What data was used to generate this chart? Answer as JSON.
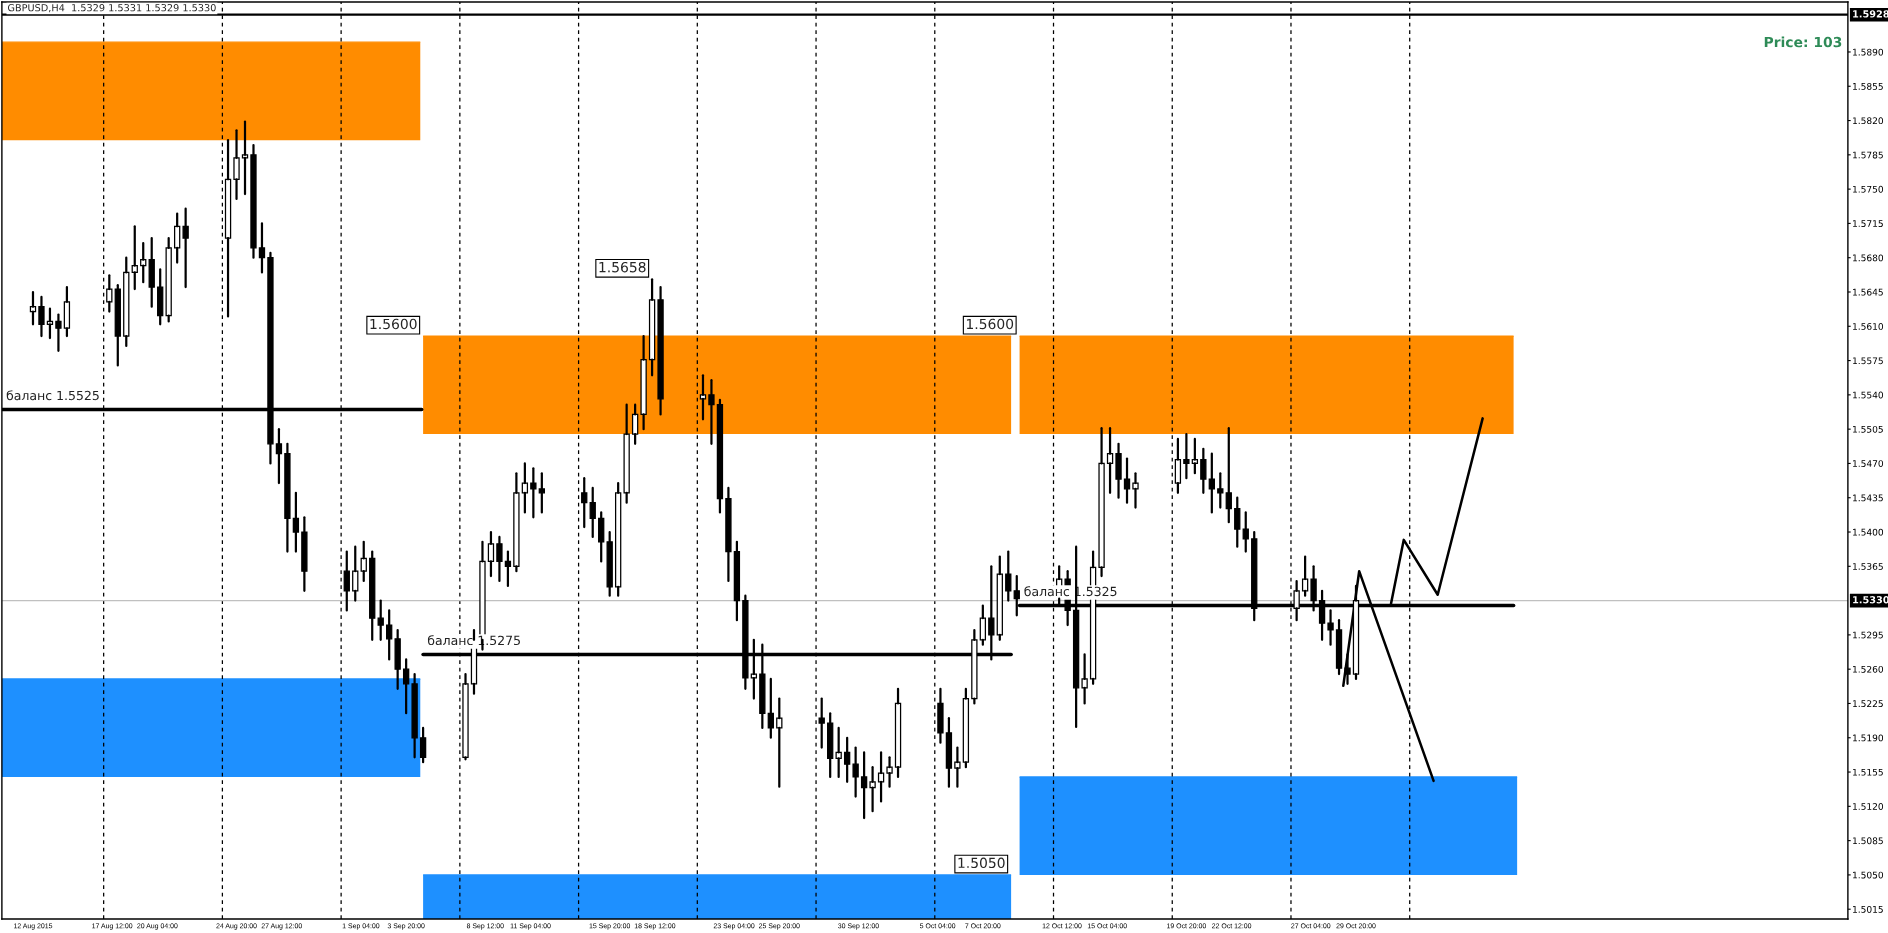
{
  "chart_data": {
    "type": "candlestick",
    "title": "GBPUSD,H4  1.5329 1.5331 1.5329 1.5330",
    "x": [
      "2015-08-12T20:00",
      "2015-08-13T08:00",
      "2015-08-13T20:00",
      "2015-08-14T08:00",
      "2015-08-14T20:00",
      "2015-08-17T08:00",
      "2015-08-17T20:00",
      "2015-08-18T08:00",
      "2015-08-18T20:00",
      "2015-08-19T08:00",
      "2015-08-19T20:00",
      "2015-08-20T08:00",
      "2015-08-20T20:00",
      "2015-08-21T08:00",
      "2015-08-21T20:00",
      "2015-08-24T08:00",
      "2015-08-24T20:00",
      "2015-08-25T08:00",
      "2015-08-25T20:00",
      "2015-08-26T08:00",
      "2015-08-26T20:00",
      "2015-08-27T08:00",
      "2015-08-27T20:00",
      "2015-08-28T08:00",
      "2015-08-28T20:00",
      "2015-08-31T08:00",
      "2015-08-31T20:00",
      "2015-09-01T08:00",
      "2015-09-01T20:00",
      "2015-09-02T08:00",
      "2015-09-02T20:00",
      "2015-09-03T08:00",
      "2015-09-03T20:00",
      "2015-09-04T08:00",
      "2015-09-04T20:00",
      "2015-09-07T08:00",
      "2015-09-07T20:00",
      "2015-09-08T08:00",
      "2015-09-08T20:00",
      "2015-09-09T08:00",
      "2015-09-09T20:00",
      "2015-09-10T08:00",
      "2015-09-10T20:00",
      "2015-09-11T08:00",
      "2015-09-11T20:00",
      "2015-09-14T08:00",
      "2015-09-14T20:00",
      "2015-09-15T08:00",
      "2015-09-15T20:00",
      "2015-09-16T08:00",
      "2015-09-16T20:00",
      "2015-09-17T08:00",
      "2015-09-17T20:00",
      "2015-09-18T08:00",
      "2015-09-18T20:00",
      "2015-09-21T08:00",
      "2015-09-21T20:00",
      "2015-09-22T08:00",
      "2015-09-22T20:00",
      "2015-09-23T08:00",
      "2015-09-23T20:00",
      "2015-09-24T08:00",
      "2015-09-24T20:00",
      "2015-09-25T08:00",
      "2015-09-25T20:00",
      "2015-09-28T08:00",
      "2015-09-28T20:00",
      "2015-09-29T08:00",
      "2015-09-29T20:00",
      "2015-09-30T08:00",
      "2015-09-30T20:00",
      "2015-10-01T08:00",
      "2015-10-01T20:00",
      "2015-10-02T08:00",
      "2015-10-02T20:00",
      "2015-10-05T08:00",
      "2015-10-05T20:00",
      "2015-10-06T08:00",
      "2015-10-06T20:00",
      "2015-10-07T08:00",
      "2015-10-07T20:00",
      "2015-10-08T08:00",
      "2015-10-08T20:00",
      "2015-10-09T08:00",
      "2015-10-09T20:00",
      "2015-10-12T08:00",
      "2015-10-12T20:00",
      "2015-10-13T08:00",
      "2015-10-13T20:00",
      "2015-10-14T08:00",
      "2015-10-14T20:00",
      "2015-10-15T08:00",
      "2015-10-15T20:00",
      "2015-10-16T08:00",
      "2015-10-16T20:00",
      "2015-10-19T08:00",
      "2015-10-19T20:00",
      "2015-10-20T08:00",
      "2015-10-20T20:00",
      "2015-10-21T08:00",
      "2015-10-21T20:00",
      "2015-10-22T08:00",
      "2015-10-22T20:00",
      "2015-10-23T08:00",
      "2015-10-23T20:00",
      "2015-10-26T08:00",
      "2015-10-26T20:00",
      "2015-10-27T08:00",
      "2015-10-27T20:00",
      "2015-10-28T08:00",
      "2015-10-28T20:00",
      "2015-10-29T08:00",
      "2015-10-29T20:00"
    ],
    "ohlc": [
      [
        1.5625,
        1.5645,
        1.5612,
        1.563
      ],
      [
        1.563,
        1.564,
        1.56,
        1.5612
      ],
      [
        1.5612,
        1.5628,
        1.5598,
        1.5615
      ],
      [
        1.5615,
        1.5622,
        1.5585,
        1.5608
      ],
      [
        1.5608,
        1.565,
        1.56,
        1.5635
      ],
      [
        1.5635,
        1.5662,
        1.5625,
        1.5648
      ],
      [
        1.5648,
        1.5652,
        1.557,
        1.56
      ],
      [
        1.56,
        1.568,
        1.559,
        1.5665
      ],
      [
        1.5665,
        1.5712,
        1.5648,
        1.5672
      ],
      [
        1.5672,
        1.5695,
        1.5655,
        1.5678
      ],
      [
        1.5678,
        1.57,
        1.563,
        1.565
      ],
      [
        1.565,
        1.5668,
        1.5612,
        1.5621
      ],
      [
        1.5621,
        1.57,
        1.5615,
        1.569
      ],
      [
        1.569,
        1.5725,
        1.5675,
        1.5712
      ],
      [
        1.5712,
        1.573,
        1.565,
        1.57
      ],
      [
        1.57,
        1.58,
        1.562,
        1.576
      ],
      [
        1.576,
        1.581,
        1.574,
        1.5782
      ],
      [
        1.5782,
        1.5819,
        1.5745,
        1.5785
      ],
      [
        1.5785,
        1.5795,
        1.568,
        1.569
      ],
      [
        1.569,
        1.5715,
        1.5665,
        1.568
      ],
      [
        1.568,
        1.5685,
        1.547,
        1.549
      ],
      [
        1.549,
        1.5505,
        1.545,
        1.548
      ],
      [
        1.548,
        1.549,
        1.538,
        1.5414
      ],
      [
        1.5414,
        1.544,
        1.538,
        1.54
      ],
      [
        1.54,
        1.5415,
        1.534,
        1.536
      ],
      [
        1.536,
        1.538,
        1.532,
        1.534
      ],
      [
        1.534,
        1.5385,
        1.533,
        1.536
      ],
      [
        1.536,
        1.539,
        1.535,
        1.5373
      ],
      [
        1.5373,
        1.538,
        1.529,
        1.5312
      ],
      [
        1.5312,
        1.533,
        1.529,
        1.5305
      ],
      [
        1.5305,
        1.532,
        1.527,
        1.5291
      ],
      [
        1.5291,
        1.53,
        1.524,
        1.526
      ],
      [
        1.526,
        1.527,
        1.5215,
        1.5245
      ],
      [
        1.5245,
        1.5255,
        1.517,
        1.519
      ],
      [
        1.519,
        1.52,
        1.5165,
        1.517
      ],
      [
        1.517,
        1.5255,
        1.5168,
        1.5245
      ],
      [
        1.5245,
        1.53,
        1.5235,
        1.529
      ],
      [
        1.529,
        1.539,
        1.528,
        1.537
      ],
      [
        1.537,
        1.54,
        1.5355,
        1.5388
      ],
      [
        1.5388,
        1.5395,
        1.535,
        1.537
      ],
      [
        1.537,
        1.538,
        1.5345,
        1.5365
      ],
      [
        1.5365,
        1.546,
        1.536,
        1.544
      ],
      [
        1.544,
        1.547,
        1.542,
        1.545
      ],
      [
        1.545,
        1.5465,
        1.5415,
        1.5444
      ],
      [
        1.5444,
        1.546,
        1.542,
        1.544
      ],
      [
        1.544,
        1.5455,
        1.5405,
        1.543
      ],
      [
        1.543,
        1.5445,
        1.5395,
        1.5414
      ],
      [
        1.5414,
        1.542,
        1.537,
        1.539
      ],
      [
        1.539,
        1.54,
        1.5335,
        1.5344
      ],
      [
        1.5344,
        1.545,
        1.5335,
        1.544
      ],
      [
        1.544,
        1.553,
        1.543,
        1.55
      ],
      [
        1.55,
        1.553,
        1.549,
        1.552
      ],
      [
        1.552,
        1.56,
        1.5505,
        1.5576
      ],
      [
        1.5576,
        1.5658,
        1.556,
        1.5637
      ],
      [
        1.5637,
        1.565,
        1.552,
        1.5536
      ],
      [
        1.5536,
        1.556,
        1.5515,
        1.554
      ],
      [
        1.554,
        1.5555,
        1.549,
        1.553
      ],
      [
        1.553,
        1.5535,
        1.542,
        1.5434
      ],
      [
        1.5434,
        1.5445,
        1.535,
        1.538
      ],
      [
        1.538,
        1.539,
        1.531,
        1.533
      ],
      [
        1.533,
        1.5335,
        1.524,
        1.5251
      ],
      [
        1.5251,
        1.529,
        1.523,
        1.5255
      ],
      [
        1.5255,
        1.5285,
        1.52,
        1.5215
      ],
      [
        1.5215,
        1.525,
        1.519,
        1.52
      ],
      [
        1.52,
        1.523,
        1.514,
        1.521
      ],
      [
        1.521,
        1.523,
        1.518,
        1.5205
      ],
      [
        1.5205,
        1.5215,
        1.515,
        1.5169
      ],
      [
        1.5169,
        1.52,
        1.515,
        1.5175
      ],
      [
        1.5175,
        1.519,
        1.5145,
        1.5163
      ],
      [
        1.5163,
        1.518,
        1.513,
        1.515
      ],
      [
        1.515,
        1.5175,
        1.5108,
        1.5139
      ],
      [
        1.5139,
        1.516,
        1.5115,
        1.5145
      ],
      [
        1.5145,
        1.5175,
        1.5125,
        1.5154
      ],
      [
        1.5154,
        1.517,
        1.514,
        1.516
      ],
      [
        1.516,
        1.524,
        1.515,
        1.5225
      ],
      [
        1.5225,
        1.524,
        1.5185,
        1.5195
      ],
      [
        1.5195,
        1.521,
        1.514,
        1.5159
      ],
      [
        1.5159,
        1.518,
        1.514,
        1.5165
      ],
      [
        1.5165,
        1.524,
        1.516,
        1.523
      ],
      [
        1.523,
        1.53,
        1.5225,
        1.529
      ],
      [
        1.529,
        1.5325,
        1.5285,
        1.5312
      ],
      [
        1.5312,
        1.5365,
        1.527,
        1.5295
      ],
      [
        1.5295,
        1.5375,
        1.529,
        1.5357
      ],
      [
        1.5357,
        1.538,
        1.533,
        1.534
      ],
      [
        1.534,
        1.5355,
        1.5315,
        1.5332
      ],
      [
        1.5332,
        1.5365,
        1.5325,
        1.5352
      ],
      [
        1.5352,
        1.536,
        1.5305,
        1.532
      ],
      [
        1.532,
        1.5385,
        1.5201,
        1.5241
      ],
      [
        1.5241,
        1.5275,
        1.5225,
        1.525
      ],
      [
        1.525,
        1.538,
        1.5245,
        1.5364
      ],
      [
        1.5364,
        1.5506,
        1.5355,
        1.547
      ],
      [
        1.547,
        1.5506,
        1.544,
        1.548
      ],
      [
        1.548,
        1.549,
        1.5435,
        1.5454
      ],
      [
        1.5454,
        1.5475,
        1.543,
        1.5444
      ],
      [
        1.5444,
        1.546,
        1.5425,
        1.545
      ],
      [
        1.545,
        1.5495,
        1.544,
        1.5474
      ],
      [
        1.5474,
        1.55,
        1.5455,
        1.547
      ],
      [
        1.547,
        1.5495,
        1.546,
        1.5474
      ],
      [
        1.5474,
        1.5485,
        1.544,
        1.5454
      ],
      [
        1.5454,
        1.548,
        1.542,
        1.5444
      ],
      [
        1.5444,
        1.546,
        1.5425,
        1.544
      ],
      [
        1.544,
        1.5506,
        1.541,
        1.5424
      ],
      [
        1.5424,
        1.5435,
        1.5385,
        1.5403
      ],
      [
        1.5403,
        1.542,
        1.538,
        1.5393
      ],
      [
        1.5393,
        1.54,
        1.531,
        1.5322
      ],
      [
        1.5322,
        1.535,
        1.531,
        1.534
      ],
      [
        1.534,
        1.5375,
        1.5335,
        1.5352
      ],
      [
        1.5352,
        1.5365,
        1.532,
        1.533
      ],
      [
        1.533,
        1.534,
        1.529,
        1.5307
      ],
      [
        1.5307,
        1.532,
        1.5285,
        1.53
      ],
      [
        1.53,
        1.531,
        1.5255,
        1.5261
      ],
      [
        1.5261,
        1.5275,
        1.5245,
        1.5255
      ],
      [
        1.5255,
        1.5345,
        1.525,
        1.533
      ]
    ],
    "series": [
      {
        "type": "line",
        "x": [
          "2015-08-11T00:00",
          "2015-09-04T16:00",
          "2015-09-04T18:00",
          "2015-09-04T20:00",
          "2015-10-09T12:00",
          "2015-10-09T18:00",
          "2015-10-10T00:00",
          "2015-11-08T03:00"
        ],
        "values": [
          1.59,
          1.59,
          null,
          1.56,
          1.56,
          null,
          1.56,
          1.56
        ],
        "lower": [
          1.58,
          1.58,
          null,
          1.55,
          1.55,
          null,
          1.55,
          1.55
        ],
        "upper": [
          1.59,
          1.59,
          null,
          1.56,
          1.56,
          null,
          1.56,
          1.56
        ],
        "color": "#ff8c00"
      },
      {
        "type": "line",
        "x": [
          "2015-08-11T00:00",
          "2015-09-04T16:00",
          "2015-09-04T18:00",
          "2015-09-04T20:00",
          "2015-10-09T12:00",
          "2015-10-09T18:00",
          "2015-10-10T00:00",
          "2015-11-08T08:00"
        ],
        "values": [
          1.525,
          1.525,
          null,
          1.505,
          1.505,
          null,
          1.515,
          1.515
        ],
        "lower": [
          1.515,
          1.515,
          null,
          1.5005,
          1.5005,
          null,
          1.505,
          1.505
        ],
        "upper": [
          1.525,
          1.525,
          null,
          1.505,
          1.505,
          null,
          1.515,
          1.515
        ],
        "color": "#1e90ff"
      },
      {
        "type": "line",
        "name": "баланс 1.5525",
        "x": [
          "2015-08-11T00:00",
          "2015-09-04T18:00"
        ],
        "values": [
          1.5525,
          1.5525
        ],
        "color": "#000000"
      },
      {
        "type": "line",
        "name": "баланс 1.5275",
        "x": [
          "2015-09-04T20:00",
          "2015-10-09T12:00"
        ],
        "values": [
          1.5275,
          1.5275
        ],
        "color": "#000000"
      },
      {
        "type": "line",
        "name": "баланс 1.5325",
        "x": [
          "2015-10-10T00:00",
          "2015-11-08T03:00"
        ],
        "values": [
          1.5325,
          1.5325
        ],
        "color": "#000000"
      },
      {
        "type": "line",
        "x": [
          "2015-10-31T21:36",
          "2015-11-01T15:36",
          "2015-11-03T15:36",
          "2015-11-06T07:12"
        ],
        "values": [
          1.5327,
          1.5392,
          1.5336,
          1.5516
        ],
        "color": "#000000"
      },
      {
        "type": "line",
        "x": [
          "2015-10-29T02:00",
          "2015-10-30T00:30",
          "2015-11-03T09:48"
        ],
        "values": [
          1.5243,
          1.536,
          1.5146
        ],
        "color": "#000000"
      }
    ],
    "ref_lines": [
      {
        "axis": "x",
        "value": "2015-08-17T00:00",
        "color": "#000000",
        "line_style": "dashed"
      },
      {
        "axis": "x",
        "value": "2015-08-24T00:00",
        "color": "#000000",
        "line_style": "dashed"
      },
      {
        "axis": "x",
        "value": "2015-08-31T00:00",
        "color": "#000000",
        "line_style": "dashed"
      },
      {
        "axis": "x",
        "value": "2015-09-07T00:00",
        "color": "#000000",
        "line_style": "dashed"
      },
      {
        "axis": "x",
        "value": "2015-09-14T00:00",
        "color": "#000000",
        "line_style": "dashed"
      },
      {
        "axis": "x",
        "value": "2015-09-21T00:00",
        "color": "#000000",
        "line_style": "dashed"
      },
      {
        "axis": "x",
        "value": "2015-09-28T00:00",
        "color": "#000000",
        "line_style": "dashed"
      },
      {
        "axis": "x",
        "value": "2015-10-05T00:00",
        "color": "#000000",
        "line_style": "dashed"
      },
      {
        "axis": "x",
        "value": "2015-10-12T00:00",
        "color": "#000000",
        "line_style": "dashed"
      },
      {
        "axis": "x",
        "value": "2015-10-19T00:00",
        "color": "#000000",
        "line_style": "dashed"
      },
      {
        "axis": "x",
        "value": "2015-10-26T00:00",
        "color": "#000000",
        "line_style": "dashed"
      },
      {
        "axis": "x",
        "value": "2015-11-02T00:00",
        "color": "#000000",
        "line_style": "dashed"
      },
      {
        "axis": "y",
        "value": 1.533,
        "label": "1.5330",
        "color": "#c0c0c0",
        "line_style": "solid"
      },
      {
        "axis": "y",
        "value": 1.5928,
        "label": "1.5928",
        "color": "#000000",
        "line_style": "solid"
      }
    ],
    "annotations": [
      {
        "text": "1.5600",
        "x": "2015-09-04T20:00",
        "y": 1.56
      },
      {
        "text": "1.5600",
        "x": "2015-10-10T00:00",
        "y": 1.56
      },
      {
        "text": "1.5050",
        "x": "2015-10-09T12:00",
        "y": 1.505
      },
      {
        "text": "1.5658",
        "x": "2015-09-18T08:00",
        "y": 1.5658
      },
      "Price: 103"
    ],
    "xlim": [
      "2015-08-11T00:00",
      "2015-11-27T20:00"
    ],
    "ylim": [
      1.5005,
      1.5941
    ],
    "xticks": [
      {
        "value": "2015-08-12T20:00",
        "label": "12 Aug 2015"
      },
      {
        "value": "2015-08-17T12:00",
        "label": "17 Aug 12:00"
      },
      {
        "value": "2015-08-20T04:00",
        "label": "20 Aug 04:00"
      },
      {
        "value": "2015-08-24T20:00",
        "label": "24 Aug 20:00"
      },
      {
        "value": "2015-08-27T12:00",
        "label": "27 Aug 12:00"
      },
      {
        "value": "2015-09-01T04:00",
        "label": "1 Sep 04:00"
      },
      {
        "value": "2015-09-03T20:00",
        "label": "3 Sep 20:00"
      },
      {
        "value": "2015-09-08T12:00",
        "label": "8 Sep 12:00"
      },
      {
        "value": "2015-09-11T04:00",
        "label": "11 Sep 04:00"
      },
      {
        "value": "2015-09-15T20:00",
        "label": "15 Sep 20:00"
      },
      {
        "value": "2015-09-18T12:00",
        "label": "18 Sep 12:00"
      },
      {
        "value": "2015-09-23T04:00",
        "label": "23 Sep 04:00"
      },
      {
        "value": "2015-09-25T20:00",
        "label": "25 Sep 20:00"
      },
      {
        "value": "2015-09-30T12:00",
        "label": "30 Sep 12:00"
      },
      {
        "value": "2015-10-05T04:00",
        "label": "5 Oct 04:00"
      },
      {
        "value": "2015-10-07T20:00",
        "label": "7 Oct 20:00"
      },
      {
        "value": "2015-10-12T12:00",
        "label": "12 Oct 12:00"
      },
      {
        "value": "2015-10-15T04:00",
        "label": "15 Oct 04:00"
      },
      {
        "value": "2015-10-19T20:00",
        "label": "19 Oct 20:00"
      },
      {
        "value": "2015-10-22T12:00",
        "label": "22 Oct 12:00"
      },
      {
        "value": "2015-10-27T04:00",
        "label": "27 Oct 04:00"
      },
      {
        "value": "2015-10-29T20:00",
        "label": "29 Oct 20:00"
      }
    ],
    "yticks": [
      1.5015,
      {
        "value": 1.505,
        "label": "1.5050"
      },
      1.5085,
      {
        "value": 1.512,
        "label": "1.5120"
      },
      1.5155,
      {
        "value": 1.519,
        "label": "1.5190"
      },
      1.5225,
      {
        "value": 1.526,
        "label": "1.5260"
      },
      1.5295,
      1.5365,
      {
        "value": 1.54,
        "label": "1.5400"
      },
      1.5435,
      {
        "value": 1.547,
        "label": "1.5470"
      },
      1.5505,
      {
        "value": 1.554,
        "label": "1.5540"
      },
      1.5575,
      {
        "value": 1.561,
        "label": "1.5610"
      },
      1.5645,
      {
        "value": 1.568,
        "label": "1.5680"
      },
      1.5715,
      {
        "value": 1.575,
        "label": "1.5750"
      },
      1.5785,
      {
        "value": 1.582,
        "label": "1.5820"
      },
      1.5855,
      {
        "value": 1.589,
        "label": "1.5890"
      }
    ]
  }
}
